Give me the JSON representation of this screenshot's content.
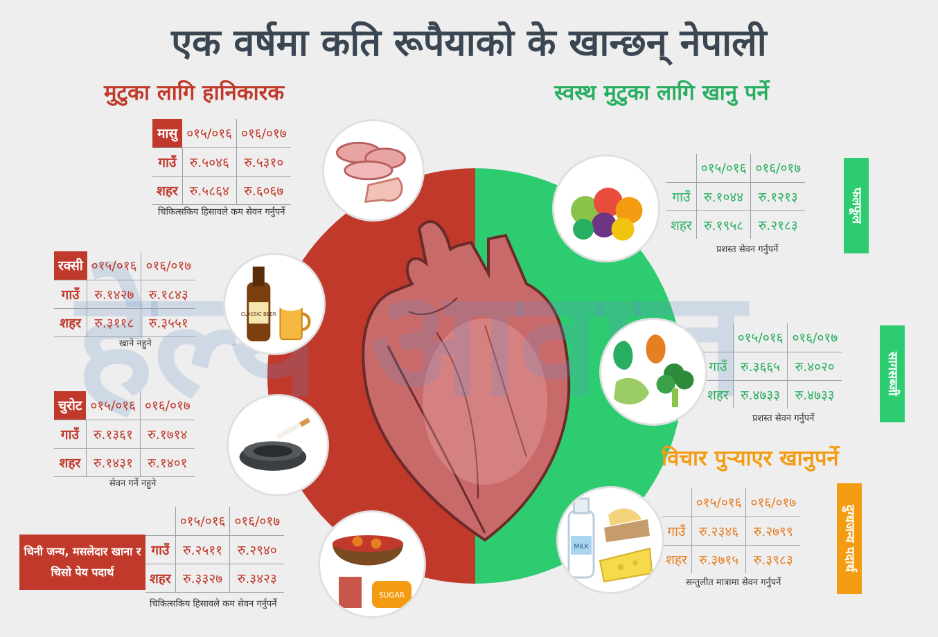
{
  "title": "एक वर्षमा कति रूपैयाको के खान्छन् नेपाली",
  "harmful_heading": "मुटुका लागि हानिकारक",
  "healthy_heading": "स्वस्थ मुटुका लागि खानु पर्ने",
  "careful_heading": "विचार पुऱ्याएर खानुपर्ने",
  "watermark": "हेल्थ आवाज",
  "years": {
    "y1": "०१५/०१६",
    "y2": "०१६/०१७"
  },
  "rows": {
    "village": "गाउँ",
    "city": "शहर"
  },
  "meat": {
    "label": "मासु",
    "village": [
      "रु.५०४६",
      "रु.५३१०"
    ],
    "city": [
      "रु.५८६४",
      "रु.६०६७"
    ],
    "note": "चिकित्सकिय हिसावले कम सेवन गर्नुपर्ने",
    "icon": "meat-icon"
  },
  "alcohol": {
    "label": "रक्सी",
    "village": [
      "रु.१४२७",
      "रु.१८४३"
    ],
    "city": [
      "रु.३११८",
      "रु.३५५१"
    ],
    "note": "खाने नहुने",
    "bottle_text": "CLASSIC BEER",
    "icon": "beer-icon"
  },
  "cigarette": {
    "label": "चुरोट",
    "village": [
      "रु.१३६१",
      "रु.१७१४"
    ],
    "city": [
      "रु.१४३१",
      "रु.१४०१"
    ],
    "note": "सेवन गर्ने नहुने",
    "icon": "ashtray-icon"
  },
  "sugar_spicy": {
    "label": "चिनी जन्य, मसलेदार खाना र चिसो पेय पदार्थ",
    "village": [
      "रु.२५११",
      "रु.२९४०"
    ],
    "city": [
      "रु.३३२७",
      "रु.३४२३"
    ],
    "note": "चिकित्सकिय हिसावले कम सेवन गर्नुपर्ने",
    "sugar_text": "SUGAR",
    "icon": "curry-icon"
  },
  "fruits": {
    "label": "फलफूल",
    "village": [
      "रु.१०४४",
      "रु.१२१३"
    ],
    "city": [
      "रु.१९५८",
      "रु.२१८३"
    ],
    "note": "प्रशस्त सेवन गर्नुपर्ने",
    "icon": "fruits-icon"
  },
  "vegetables": {
    "label": "सागसब्जी",
    "village": [
      "रु.३६६५",
      "रु.४०२०"
    ],
    "city": [
      "रु.४७३३",
      "रु.४७३३"
    ],
    "note": "प्रशस्त सेवन गर्नुपर्ने",
    "icon": "vegetables-icon"
  },
  "dairy": {
    "label": "दुग्धजन्य पदार्थ",
    "village": [
      "रु.२३४६",
      "रु.२७९९"
    ],
    "city": [
      "रु.३७१५",
      "रु.३९८३"
    ],
    "note": "सन्तुलीत मात्रामा सेवन गर्नुपर्ने",
    "milk_text": "MILK",
    "icon": "milk-icon"
  },
  "colors": {
    "red": "#c0392b",
    "green": "#2ecc71",
    "orange": "#f39c12",
    "title": "#3b4653"
  }
}
